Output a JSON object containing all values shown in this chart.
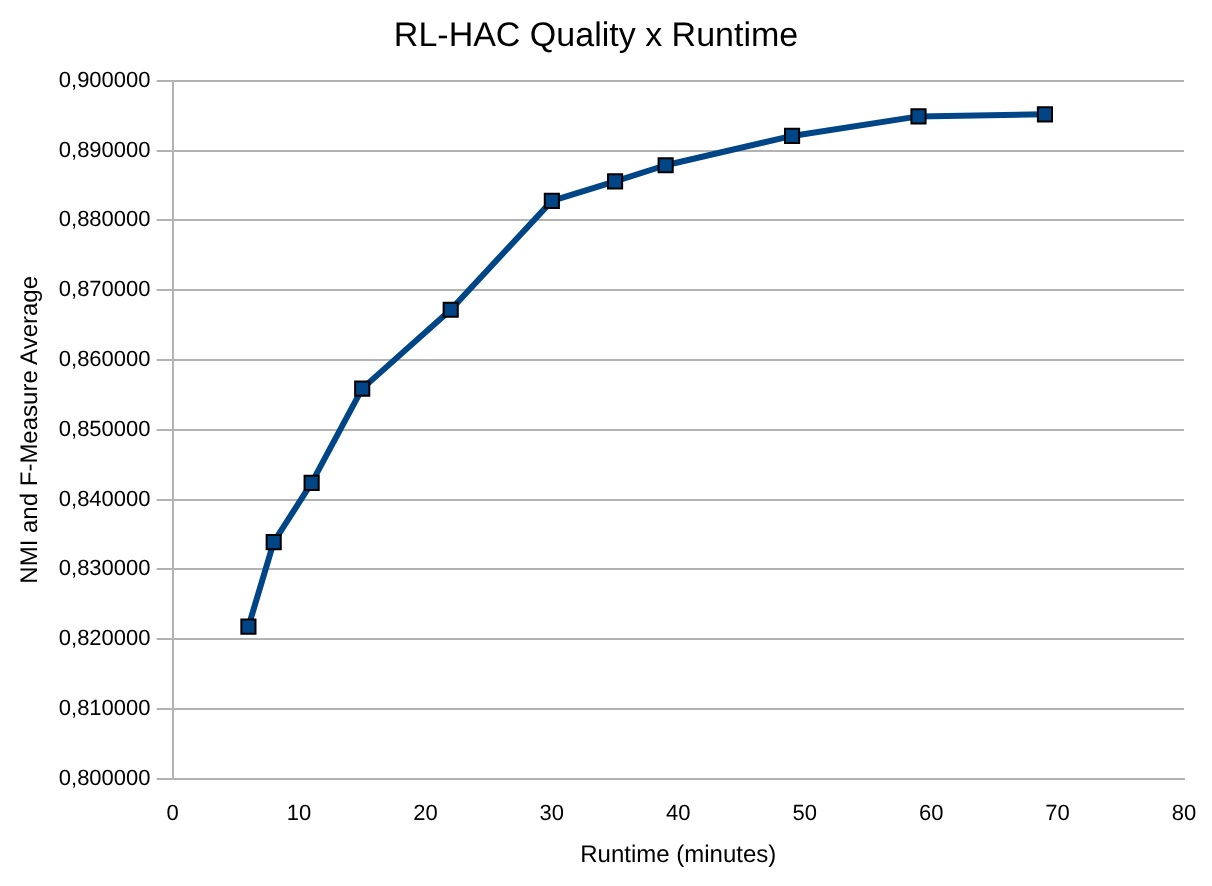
{
  "chart_data": {
    "type": "line",
    "title": "RL-HAC Quality x Runtime",
    "xlabel": "Runtime (minutes)",
    "ylabel": "NMI and F-Measure Average",
    "x": [
      6,
      8,
      11,
      15,
      22,
      30,
      35,
      39,
      49,
      59,
      69
    ],
    "series": [
      {
        "color": "#004586",
        "values": [
          0.8218,
          0.8339,
          0.8424,
          0.8559,
          0.8672,
          0.8828,
          0.8856,
          0.8879,
          0.8921,
          0.8949,
          0.8952
        ]
      }
    ],
    "xlim": [
      0,
      80
    ],
    "xticks": [
      0,
      10,
      20,
      30,
      40,
      50,
      60,
      70,
      80
    ],
    "ylim": [
      0.8,
      0.9
    ],
    "yticks": [
      {
        "value": 0.8,
        "label": "0,800000"
      },
      {
        "value": 0.81,
        "label": "0,810000"
      },
      {
        "value": 0.82,
        "label": "0,820000"
      },
      {
        "value": 0.83,
        "label": "0,830000"
      },
      {
        "value": 0.84,
        "label": "0,840000"
      },
      {
        "value": 0.85,
        "label": "0,850000"
      },
      {
        "value": 0.86,
        "label": "0,860000"
      },
      {
        "value": 0.87,
        "label": "0,870000"
      },
      {
        "value": 0.88,
        "label": "0,880000"
      },
      {
        "value": 0.89,
        "label": "0,890000"
      },
      {
        "value": 0.9,
        "label": "0,900000"
      }
    ],
    "grid": "y",
    "legend": false,
    "marker": "square",
    "line_style": "solid"
  }
}
